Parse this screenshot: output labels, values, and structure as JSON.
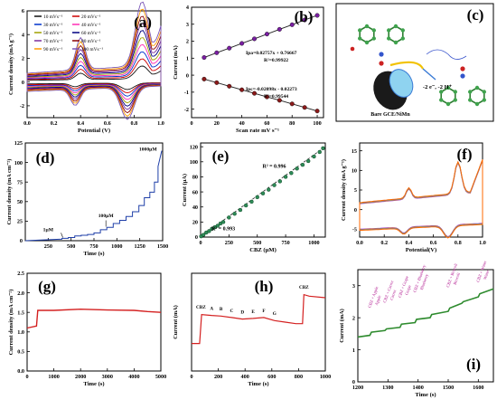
{
  "chart_data": [
    {
      "id": "a",
      "type": "line",
      "panel_label": "(a)",
      "xlabel": "Potential (V)",
      "ylabel": "Current density (mA g⁻¹)",
      "xlim": [
        0,
        1.0
      ],
      "ylim": [
        -3,
        6
      ],
      "xticks": [
        "0.0",
        "0.2",
        "0.4",
        "0.6",
        "0.8",
        "1.0"
      ],
      "yticks": [
        "-2",
        "0",
        "2",
        "4",
        "6"
      ],
      "legend": [
        "10 mVs⁻¹",
        "20 mVs⁻¹",
        "30 mVs⁻¹",
        "40 mVs⁻¹",
        "50 mVs⁻¹",
        "60 mVs⁻¹",
        "70 mVs⁻¹",
        "80 mVs⁻¹",
        "90 mVs⁻¹",
        "100 mVs⁻¹"
      ],
      "series_colors": [
        "#111111",
        "#cc0000",
        "#0033cc",
        "#ff2db4",
        "#a0a000",
        "#000080",
        "#7b2d9e",
        "#8b0000",
        "#ff9a00",
        "#7a55b7"
      ],
      "scan_rates": [
        10,
        20,
        30,
        40,
        50,
        60,
        70,
        80,
        90,
        100
      ]
    },
    {
      "id": "b",
      "type": "scatter",
      "panel_label": "(b)",
      "xlabel": "Scan rate mV s⁻¹",
      "ylabel": "Current (mA)",
      "xlim": [
        0,
        105
      ],
      "ylim": [
        -2.5,
        4
      ],
      "xticks": [
        "0",
        "20",
        "40",
        "60",
        "80",
        "100"
      ],
      "yticks": [
        "-2",
        "-1",
        "0",
        "1",
        "2",
        "3",
        "4"
      ],
      "x": [
        10,
        20,
        30,
        40,
        50,
        60,
        70,
        80,
        90,
        100
      ],
      "series": [
        {
          "name": "Ipa",
          "values": [
            1.04,
            1.32,
            1.59,
            1.87,
            2.14,
            2.42,
            2.7,
            2.97,
            3.25,
            3.52
          ]
        },
        {
          "name": "Ipc",
          "values": [
            -0.23,
            -0.44,
            -0.65,
            -0.86,
            -1.07,
            -1.28,
            -1.48,
            -1.69,
            -1.9,
            -2.11
          ]
        }
      ],
      "annotations": [
        "Ipa=0.02757x + 0.76667",
        "R²=0.99922",
        "Ipc=-0.02098x - 0.02273",
        "R²=0.99544"
      ]
    },
    {
      "id": "c",
      "type": "diagram",
      "panel_label": "(c)",
      "labels": [
        "-2 e⁻, -2 H⁺",
        "Bare GCE/NiMn"
      ]
    },
    {
      "id": "d",
      "type": "line",
      "panel_label": "(d)",
      "xlabel": "Time (s)",
      "ylabel": "Current density (mA cm⁻²)",
      "xlim": [
        0,
        1500
      ],
      "ylim": [
        0,
        125
      ],
      "xticks": [
        "250",
        "500",
        "750",
        "1000",
        "1250",
        "1500"
      ],
      "yticks": [
        "0",
        "25",
        "50",
        "75",
        "100",
        "125"
      ],
      "x": [
        0,
        400,
        400,
        470,
        470,
        540,
        540,
        610,
        610,
        680,
        680,
        750,
        750,
        820,
        820,
        890,
        890,
        960,
        960,
        1030,
        1030,
        1100,
        1100,
        1170,
        1170,
        1240,
        1240,
        1300,
        1300,
        1360,
        1360,
        1410,
        1410,
        1450,
        1450,
        1490
      ],
      "values": [
        0,
        2,
        3,
        3,
        4,
        4,
        6,
        6,
        7,
        7,
        8,
        8,
        10,
        10,
        14,
        14,
        17,
        17,
        22,
        22,
        26,
        26,
        31,
        31,
        37,
        37,
        45,
        45,
        55,
        55,
        62,
        62,
        75,
        75,
        95,
        115
      ],
      "annotations": [
        "1µM",
        "100µM",
        "1000µM"
      ]
    },
    {
      "id": "e",
      "type": "scatter",
      "panel_label": "(e)",
      "xlabel": "CBZ (µM)",
      "ylabel": "Current (µA)",
      "xlim": [
        0,
        1100
      ],
      "ylim": [
        0,
        125
      ],
      "xticks": [
        "0",
        "250",
        "500",
        "750",
        "1000"
      ],
      "yticks": [
        "0",
        "20",
        "40",
        "60",
        "80",
        "100",
        "120"
      ],
      "x": [
        5,
        25,
        50,
        75,
        100,
        125,
        150,
        175,
        200,
        250,
        300,
        350,
        400,
        450,
        500,
        550,
        600,
        650,
        700,
        750,
        800,
        850,
        900,
        950,
        1000,
        1050,
        1080
      ],
      "values": [
        1,
        3,
        6,
        8,
        11,
        13,
        15,
        18,
        20,
        26,
        31,
        36,
        42,
        47,
        53,
        58,
        63,
        69,
        74,
        80,
        85,
        91,
        96,
        101,
        107,
        113,
        118
      ],
      "annotations": [
        "R² = 0.996",
        "R² = 0.993"
      ]
    },
    {
      "id": "f",
      "type": "line",
      "panel_label": "(f)",
      "xlabel": "Potential(V)",
      "ylabel": "Current density (mA g⁻¹)",
      "xlim": [
        0,
        1.0
      ],
      "ylim": [
        -7,
        17
      ],
      "xticks": [
        "0.0",
        "0.2",
        "0.4",
        "0.6",
        "0.8",
        "1.0"
      ],
      "yticks": [
        "-5",
        "0",
        "5",
        "10",
        "15"
      ],
      "series_colors": [
        "#9b2fd0",
        "#e6a100",
        "#3a7bd5",
        "#ff6a00"
      ]
    },
    {
      "id": "g",
      "type": "line",
      "panel_label": "(g)",
      "xlabel": "Time (s)",
      "ylabel": "Current density (mA cm⁻²)",
      "xlim": [
        0,
        5000
      ],
      "ylim": [
        0,
        2.5
      ],
      "xticks": [
        "0",
        "1000",
        "2000",
        "3000",
        "4000",
        "5000"
      ],
      "yticks": [
        "0.0",
        "0.5",
        "1.0",
        "1.5",
        "2.0",
        "2.5"
      ],
      "x": [
        0,
        350,
        400,
        500,
        1000,
        2000,
        3000,
        4000,
        4500,
        5000
      ],
      "values": [
        1.1,
        1.15,
        1.55,
        1.55,
        1.55,
        1.58,
        1.56,
        1.55,
        1.52,
        1.5
      ]
    },
    {
      "id": "h",
      "type": "line",
      "panel_label": "(h)",
      "xlabel": "Time (s)",
      "ylabel": "Current (mA)",
      "xlim": [
        0,
        1000
      ],
      "ylim": [
        0,
        3.2
      ],
      "xticks": [
        "0",
        "200",
        "400",
        "600",
        "800",
        "1000"
      ],
      "x": [
        0,
        60,
        75,
        150,
        220,
        300,
        380,
        460,
        540,
        620,
        700,
        780,
        830,
        840,
        880,
        1000
      ],
      "values": [
        0.9,
        0.9,
        1.85,
        1.82,
        1.8,
        1.75,
        1.7,
        1.72,
        1.75,
        1.65,
        1.6,
        1.55,
        1.55,
        2.5,
        2.45,
        2.4
      ],
      "annotations": [
        "CBZ",
        "A",
        "B",
        "C",
        "D",
        "E",
        "F",
        "G",
        "CBZ"
      ]
    },
    {
      "id": "i",
      "type": "line",
      "panel_label": "(i)",
      "xlabel": "Time (s)",
      "ylabel": "Current (mA)",
      "xlim": [
        1200,
        1650
      ],
      "ylim": [
        0,
        3.5
      ],
      "xticks": [
        "1200",
        "1300",
        "1400",
        "1500",
        "1600"
      ],
      "yticks": [
        "0",
        "1",
        "2",
        "3"
      ],
      "x": [
        1200,
        1240,
        1245,
        1290,
        1295,
        1340,
        1345,
        1390,
        1395,
        1440,
        1445,
        1500,
        1505,
        1545,
        1550,
        1600,
        1605,
        1650
      ],
      "values": [
        1.4,
        1.45,
        1.55,
        1.6,
        1.65,
        1.7,
        1.8,
        1.85,
        1.95,
        2.0,
        2.1,
        2.2,
        2.3,
        2.45,
        2.5,
        2.65,
        2.75,
        2.9
      ],
      "annotations": [
        "CBZ + Apple",
        "Apple",
        "CBZ + Carrot",
        "Carrot",
        "CBZ + Grape",
        "Grape",
        "CBZ + Blueberry",
        "Blueberry",
        "CBZ + Brocoli",
        "Brocoli",
        "CBZ + Water",
        "Water"
      ]
    }
  ]
}
